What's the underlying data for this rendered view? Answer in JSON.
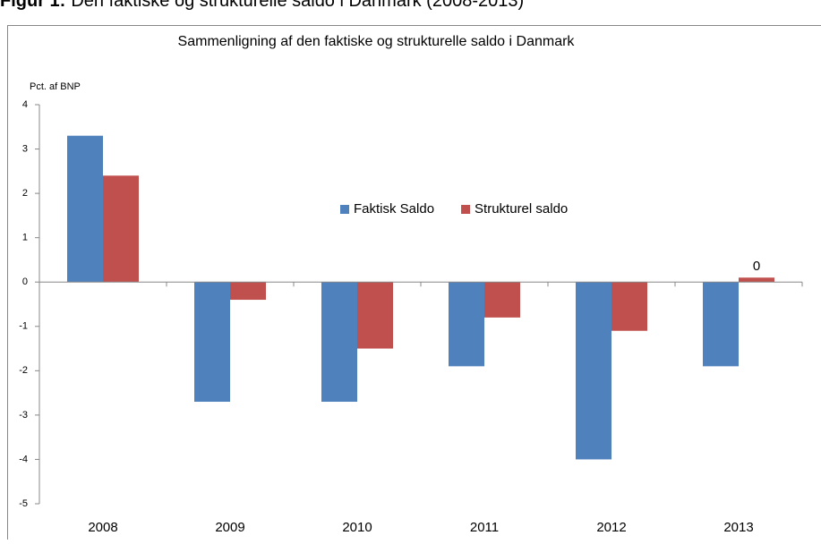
{
  "caption": {
    "label": "Figur 1:",
    "text": "Den faktiske og strukturelle saldo i Danmark (2008-2013)"
  },
  "chart_data": {
    "type": "bar",
    "title": "Sammenligning af den faktiske og strukturelle saldo i Danmark",
    "y_label": "Pct. af BNP",
    "categories": [
      "2008",
      "2009",
      "2010",
      "2011",
      "2012",
      "2013"
    ],
    "series": [
      {
        "name": "Faktisk Saldo",
        "color": "#4f81bd",
        "values": [
          3.3,
          -2.7,
          -2.7,
          -1.9,
          -4.0,
          -1.9
        ]
      },
      {
        "name": "Strukturel saldo",
        "color": "#c0504d",
        "values": [
          2.4,
          -0.4,
          -1.5,
          -0.8,
          -1.1,
          0.1
        ],
        "value_labels": [
          null,
          null,
          null,
          null,
          null,
          "0"
        ]
      }
    ],
    "ylim": [
      -5,
      4
    ],
    "yticks": [
      -5,
      -4,
      -3,
      -2,
      -1,
      0,
      1,
      2,
      3,
      4
    ],
    "grid": false,
    "legend_position": "inside"
  }
}
